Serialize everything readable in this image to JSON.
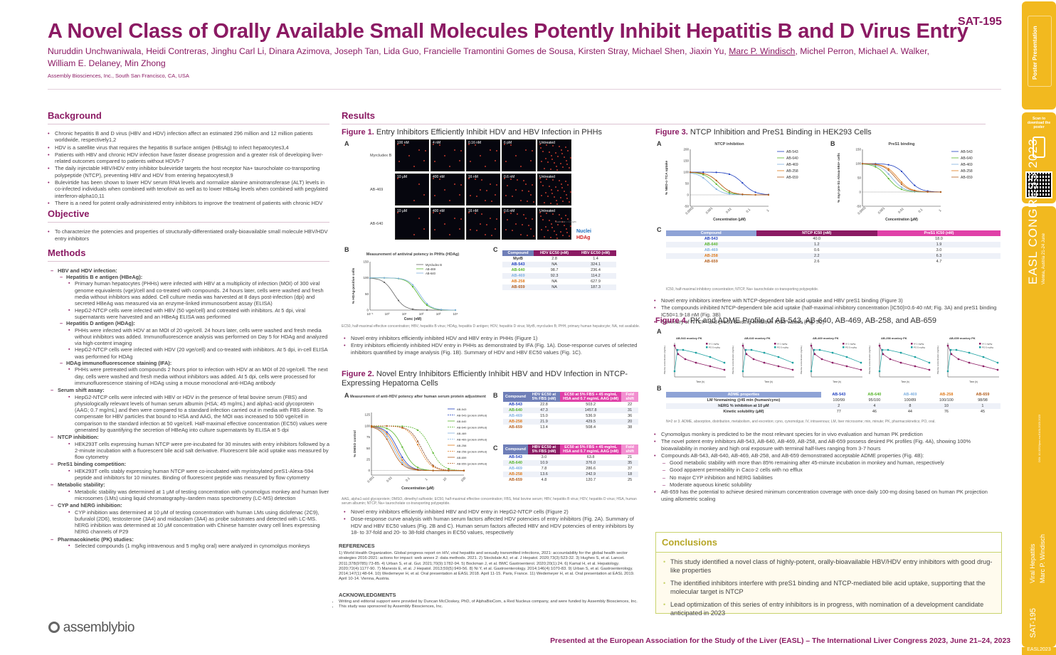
{
  "header": {
    "title": "A Novel Class of Orally Available Small Molecules Potently Inhibit Hepatitis B and D Virus Entry",
    "code": "SAT-195",
    "authors_a": "Nuruddin Unchwaniwala, Heidi Contreras, Jinghu Carl Li, Dinara Azimova, Joseph Tan, Lida Guo, Francielle Tramontini Gomes de Sousa, Kirsten Stray, Michael Shen, Jiaxin Yu, ",
    "authors_presenter": "Marc P. Windisch",
    "authors_b": ", Michel Perron, Michael A. Walker, William E. Delaney, Min Zhong",
    "affiliation": "Assembly Biosciences, Inc., South San Francisco, CA, USA"
  },
  "background": {
    "heading": "Background",
    "items": [
      "Chronic hepatitis B and D virus (HBV and HDV) infection affect an estimated 296 million and 12 million patients worldwide, respectively1,2",
      "HDV is a satellite virus that requires the hepatitis B surface antigen (HBsAg) to infect hepatocytes3,4",
      "Patients with HBV and chronic HDV infection have faster disease progression and a greater risk of developing liver-related outcomes compared to patients without HDV5-7",
      "The daily injectable HBV/HDV entry inhibitor bulevirtide targets the host receptor Na+ taurocholate co-transporting polypeptide (NTCP), preventing HBV and HDV from entering hepatocytes8,9",
      "Bulevirtide has been shown to lower HDV serum RNA levels and normalize alanine aminotransferase (ALT) levels in co-infected individuals when combined with tenofovir as well as to lower HBsAg levels when combined with pegylated interferon-alpha10,11",
      "There is a need for potent orally-administered entry inhibitors to improve the treatment of patients with chronic HDV"
    ]
  },
  "objective": {
    "heading": "Objective",
    "items": [
      "To characterize the potencies and properties of structurally-differentiated orally-bioavailable small molecule HBV/HDV entry inhibitors"
    ]
  },
  "methods": {
    "heading": "Methods",
    "lines": [
      [
        "m1",
        "HBV and HDV infection:"
      ],
      [
        "m2",
        "Hepatitis B e antigen (HBeAg):"
      ],
      [
        "m3",
        "Primary human hepatocytes (PHHs) were infected with HBV at a multiplicity of infection (MOI) of 300 viral genome equivalents (vge)/cell and co-treated with compounds. 24 hours later, cells were washed and fresh media without inhibitors was added. Cell culture media was harvested at 8 days post-infection (dpi) and secreted HBeAg was measured via an enzyme-linked immunosorbent assay (ELISA)"
      ],
      [
        "m3",
        "HepG2-NTCP cells were infected with HBV (50 vge/cell) and cotreated with inhibitors. At 5 dpi, viral supernatants were harvested and an HBeAg ELISA was performed"
      ],
      [
        "m2",
        "Hepatitis D antigen (HDAg):"
      ],
      [
        "m3",
        "PHHs were infected with HDV at an MOI of 20 vge/cell. 24 hours later, cells were washed and fresh media without inhibitors was added. Immunofluorescence analysis was performed on Day 5 for HDAg and analyzed via high-content imaging"
      ],
      [
        "m3",
        "HepG2-NTCP cells were infected with HDV (20 vge/cell) and co-treated with inhibitors. At 5 dpi, in-cell ELISA was performed for HDAg"
      ],
      [
        "m2",
        "HDAg immunofluorescence staining (IFA):"
      ],
      [
        "m3",
        "PHHs were pretreated with compounds 2 hours prior to infection with HDV at an MOI of 20 vge/cell. The next day, cells were washed and fresh media without inhibitors was added. At 5 dpi, cells were processed for immunofluorescence staining of HDAg using a mouse monoclonal anti-HDAg antibody"
      ],
      [
        "m1",
        "Serum shift assay:"
      ],
      [
        "m3",
        "HepG2-NTCP cells were infected with HBV or HDV in the presence of fetal bovine serum (FBS) and physiologically relevant levels of human serum albumin (HSA; 45 mg/mL) and alpha1-acid glycoprotein (AAG; 0.7 mg/mL) and then were compared to a standard infection carried out in media with FBS alone. To compensate for HBV particles that bound to HSA and AAG, the MOI was increased to 500 vge/cell in comparison to the standard infection at 50 vge/cell. Half-maximal effective concentration (EC50) values were generated by quantifying the secretion of HBeAg into culture supernatants by ELISA at 5 dpi"
      ],
      [
        "m1",
        "NTCP inhibition:"
      ],
      [
        "m3",
        "HEK293T cells expressing human NTCP were pre-incubated for 30 minutes with entry inhibitors followed by a 2-minute incubation with a fluorescent bile acid salt derivative. Fluorescent bile acid uptake was measured by flow cytometry"
      ],
      [
        "m1",
        "PreS1 binding competition:"
      ],
      [
        "m3",
        "HEK293T cells stably expressing human NTCP were co-incubated with myristoylated preS1-Alexa-594 peptide and inhibitors for 10 minutes. Binding of fluorescent peptide was measured by flow cytometry"
      ],
      [
        "m1",
        "Metabolic stability:"
      ],
      [
        "m3",
        "Metabolic stability was determined at 1 μM of testing concentration with cynomolgus monkey and human liver microsomes (LMs) using liquid chromatography–tandem mass spectrometry (LC-MS) detection"
      ],
      [
        "m1",
        "CYP and hERG inhibition:"
      ],
      [
        "m3",
        "CYP inhibition was determined at 10 μM of testing concentration with human LMs using diclofenac (2C9), bufuralol (2D6), testosterone (3A4) and midazolam (3A4) as probe substrates and detected with LC-MS. hERG inhibition was determined at 10 μM concentration with Chinese hamster ovary cell lines expressing hERG channels of P29"
      ],
      [
        "m1",
        "Pharmacokinetic (PK) studies:"
      ],
      [
        "m3",
        "Selected compounds (1 mg/kg intravenous and 5 mg/kg oral) were analyzed in cynomolgus monkeys"
      ]
    ]
  },
  "logo": "assemblybio",
  "results": {
    "heading": "Results",
    "fig1": {
      "num": "Figure 1.",
      "title": "Entry Inhibitors Efficiently Inhibit HDV and HBV Infection in PHHs",
      "A": "A",
      "B": "B",
      "C": "C",
      "rows": [
        "Myrcludex B",
        "AB-469",
        "AB-640"
      ],
      "row_labels": [
        [
          "100 nM",
          "4 nM",
          "0.16 nM",
          "6 pM",
          "Untreated"
        ],
        [
          "10 μM",
          "400 nM",
          "16 nM",
          "0.6 nM",
          "Untreated"
        ],
        [
          "10 μM",
          "400 nM",
          "16 nM",
          "0.6 nM",
          "Untreated"
        ]
      ],
      "scale": "Scale bar = 100μm",
      "nuclei": "Nuclei",
      "hdag": "HDAg",
      "chart_title": "Measurement of antiviral potency in PHHs (HDAg)",
      "ylabel": "% HDAg-positive cells",
      "xlabel": "Conc (nM)",
      "legend": [
        "Myrcludex B",
        "AB-469",
        "AB-640"
      ],
      "table_head": [
        "Compound",
        "HDV EC50 (nM)",
        "HBV EC50 (nM)"
      ],
      "table_rows": [
        [
          "MyrB",
          "2.8",
          "1.4"
        ],
        [
          "AB-543",
          "NA",
          "324.1"
        ],
        [
          "AB-640",
          "98.7",
          "236.4"
        ],
        [
          "AB-469",
          "92.3",
          "114.2"
        ],
        [
          "AB-258",
          "NA",
          "627.9"
        ],
        [
          "AB-659",
          "NA",
          "187.3"
        ]
      ],
      "caption": "EC50, half-maximal effective concentration; HBV, hepatitis B virus; HDAg, hepatitis D antigen; HDV, hepatitis D virus; MyrB, myrcludex B; PHH, primary human hepatocyte; NA, not available.",
      "bullets": [
        "Novel entry inhibitors efficiently inhibited HDV and HBV entry in PHHs (Figure 1)",
        "Entry inhibitors efficiently inhibited HDV entry in PHHs as demonstrated by IFA (Fig. 1A). Dose-response curves of selected inhibitors quantified by image analysis (Fig. 1B). Summary of HDV and HBV EC50 values (Fig. 1C)."
      ]
    },
    "fig2": {
      "num": "Figure 2.",
      "title": "Novel Entry Inhibitors Efficiently Inhibit HBV and HDV Infection in NTCP-Expressing Hepatoma Cells",
      "A": "A",
      "B": "B",
      "C": "C",
      "chart_title": "Measurement of anti-HDV potency after human serum protein adjustment",
      "ylabel": "% DMSO control",
      "xlabel": "Concentration (μM)",
      "legend": [
        "AB-543",
        "AB-543 (protein shifted)",
        "AB-640",
        "AB-640 (protein shifted)",
        "AB-469",
        "AB-469 (protein shifted)",
        "AB-258",
        "AB-258 (protein shifted)",
        "AB-659",
        "AB-659 (protein shifted)"
      ],
      "tableB_head": [
        "Compound",
        "HDV EC50 at 5% FBS (nM)",
        "EC50 at 5% FBS + 45 mg/mL HSA and 0.7 mg/mL AAG (nM)",
        "Fold shift"
      ],
      "tableB_rows": [
        [
          "AB-543",
          "22.8",
          "503.2",
          "22"
        ],
        [
          "AB-640",
          "47.3",
          "1457.8",
          "31"
        ],
        [
          "AB-469",
          "15.0",
          "536.9",
          "36"
        ],
        [
          "AB-258",
          "21.9",
          "429.5",
          "20"
        ],
        [
          "AB-659",
          "13.4",
          "508.4",
          "38"
        ]
      ],
      "tableC_head": [
        "Compound",
        "HBV EC50 at 5% FBS (nM)",
        "EC50 at 5% FBS + 45 mg/mL HSA and 0.7 mg/mL AAG (nM)",
        "Fold shift"
      ],
      "tableC_rows": [
        [
          "AB-543",
          "3.0",
          "63.8",
          "21"
        ],
        [
          "AB-640",
          "10.9",
          "376.0",
          "35"
        ],
        [
          "AB-469",
          "7.8",
          "286.6",
          "37"
        ],
        [
          "AB-258",
          "13.6",
          "242.9",
          "18"
        ],
        [
          "AB-659",
          "4.8",
          "120.7",
          "25"
        ]
      ],
      "caption": "AAG, alpha1-acid glycoprotein; DMSO, dimethyl sulfoxide; EC50, half-maximal effective concentration; FBS, fetal bovine serum; HBV, hepatitis B virus; HDV, hepatitis D virus; HSA, human serum albumin; NTCP, Na+ taurocholate co-transporting polypeptide.",
      "bullets": [
        "Novel entry inhibitors efficiently inhibited HBV and HDV entry in HepG2-NTCP cells (Figure 2)",
        "Dose-response curve analysis with human serum factors affected HDV potencies of entry inhibitors (Fig. 2A). Summary of HDV and HBV EC50 values (Fig. 2B and C). Human serum factors affected HBV and HDV potencies of entry inhibitors by 18- to 37-fold and 20- to 38-fold changes in EC50 values, respectively"
      ]
    },
    "refs_heading": "REFERENCES",
    "refs": "1) World Health Organization. Global progress report on HIV, viral hepatitis and sexually transmitted infections, 2021: accountability for the global health sector strategies 2016-2021: actions for impact: web annex 2: data methods. 2021. 2) Stockdale AJ, et al. J Hepatol. 2020;73(3):523-32. 3) Hughes S, et al. Lancet. 2011;378(9785):73-85. 4) Urban S, et al. Gut. 2021;70(9):1782-94. 5) Bockman J, et al. BMC Gastroenterol. 2020;20(1):24. 6) Kamal H, et al. Hepatology. 2020;72(4):1177-90. 7) Manesis E, et al. J Hepatol. 2013;59(5):949-56. 8) Ni Y, et al. Gastroenterology. 2014;146(4):1070-83. 9) Urban S, et al. Gastroenterology. 2014;147(1):48-64. 10) Wedemeyer H, et al. Oral presentation at EASL 2018. April 11-15. Paris, France. 11) Wedemeyer H, et al. Oral presentation at EASL 2019. April 10-14. Vienna, Austria.",
    "ack_heading": "ACKNOWLEDGMENTS",
    "ack": [
      "Writing and editorial support were provided by Duncan McCloskey, PhD, of AlphaBioCom, a Red Nucleus company, and were funded by Assembly Biosciences, Inc.",
      "This study was sponsored by Assembly Biosciences, Inc."
    ],
    "fig3": {
      "num": "Figure 3.",
      "title": "NTCP Inhibition and PreS1 Binding in HEK293 Cells",
      "A": "A",
      "B": "B",
      "C": "C",
      "chartA_title": "NTCP inhibition",
      "chartA_ylabel": "% NBD-c-TCA uptake",
      "chartB_title": "PreS1 binding",
      "chartB_ylabel": "% myr-pre-S1-Alexa-594+ cells",
      "xlabel": "Concentration (μM)",
      "legend": [
        "AB-543",
        "AB-640",
        "AB-469",
        "AB-258",
        "AB-659"
      ],
      "table_head": [
        "Compound",
        "NTCP IC50 (nM)",
        "PreS1 IC50 (nM)"
      ],
      "table_rows": [
        [
          "AB-543",
          "40.0",
          "18.0"
        ],
        [
          "AB-640",
          "1.2",
          "1.9"
        ],
        [
          "AB-469",
          "0.6",
          "3.0"
        ],
        [
          "AB-258",
          "2.2",
          "6.3"
        ],
        [
          "AB-659",
          "2.6",
          "4.7"
        ]
      ],
      "caption": "IC50, half-maximal inhibitory concentration; NTCP, Na+ taurocholate co-transporting polypeptide.",
      "bullets": [
        "Novel entry inhibitors interfere with NTCP-dependent bile acid uptake and HBV preS1 binding (Figure 3)",
        "The compounds inhibited NTCP-dependent bile acid uptake (half-maximal inhibitory concentration [IC50]=0.6-40 nM; Fig. 3A) and preS1 binding IC50=1.9-18 nM (Fig. 3B)",
        "Summary of NTCP- and preS1 binding inhibition IC50 values (Fig. 3C)"
      ]
    },
    "fig4": {
      "num": "Figure 4.",
      "title": "PK and ADME Profile of AB-543, AB-640, AB-469, AB-258, and AB-659",
      "A": "A",
      "B": "B",
      "pk_titles": [
        "AB-543 monkey PK",
        "AB-640 monkey PK",
        "AB-469 monkey PK",
        "AB-258 monkey PK",
        "AB-659 monkey PK"
      ],
      "pk_legend": [
        "IV 1 mg/kg",
        "PO 5 mg/kg"
      ],
      "pk_xlabel": "Time (h)",
      "pk_ylabel": "Plasma concentration (ng/mL)",
      "table_head": [
        "ADME properties",
        "AB-543",
        "AB-640",
        "AB-469",
        "AB-258",
        "AB-659"
      ],
      "table_rows": [
        [
          "LM %remaining @45 min (human/cyno)",
          "100/99",
          "95/100",
          "100/89",
          "100/100",
          "98/98"
        ],
        [
          "hERG % inhibition at 10 μM",
          "2",
          "4",
          "8",
          "10",
          "1"
        ],
        [
          "Kinetic solubility (μM)",
          "77",
          "46",
          "44",
          "76",
          "45"
        ]
      ],
      "caption": "N=2 or 3. ADME, absorption, distribution, metabolism, and excretion; cyno, cynomolgus; IV, intravenous; LM, liver microsome; min, minute; PK, pharmacokinetics; PO, oral.",
      "bullets": [
        [
          "b",
          "Cynomolgus monkey is predicted to be the most relevant species for in vivo evaluation and human PK prediction"
        ],
        [
          "b",
          "The novel potent entry inhibitors AB-543, AB-640, AB-469, AB-258, and AB-659 possess desired PK profiles (Fig. 4A), showing 100% bioavailability in monkey and high oral exposure with terminal half-lives ranging from 3-7 hours"
        ],
        [
          "b",
          "Compounds AB-543, AB-640, AB-469, AB-258, and AB-659 demonstrated acceptable ADME properties (Fig. 4B):"
        ],
        [
          "d",
          "Good metabolic stability with more than 85% remaining after 45-minute incubation in monkey and human, respectively"
        ],
        [
          "d",
          "Good apparent permeability in Caco-2 cells with no efflux"
        ],
        [
          "d",
          "No major CYP inhibition and hERG liabilities"
        ],
        [
          "d",
          "Moderate aqueous kinetic solubility"
        ],
        [
          "b",
          "AB-659 has the potential to achieve desired minimum concentration coverage with once-daily 100-mg dosing based on human PK projection using allometric scaling"
        ]
      ]
    }
  },
  "conclusions": {
    "heading": "Conclusions",
    "items": [
      "This study identified a novel class of highly-potent, orally-bioavailable HBV/HDV entry inhibitors with good drug-like properties",
      "The identified inhibitors interfere with preS1 binding and NTCP-mediated bile acid uptake, supporting that the molecular target is NTCP",
      "Lead optimization of this series of entry inhibitors is in progress, with nomination of a development candidate anticipated in 2023"
    ]
  },
  "footer": "Presented at the European Association for the Study of the Liver (EASL) – The International Liver Congress 2023, June 21–24, 2023",
  "sidebar": {
    "poster_text": "Poster Presentation",
    "scan_text": "Scan to download the poster",
    "congress": "EASL CONGRESS 2023",
    "congress_dates": "Vienna, Austria 21-24 June",
    "topic": "Viral Hepatitis",
    "presenter": "Marc P. Windisch",
    "code": "SAT-195",
    "year": "EASL2023",
    "doi": "DOI: 10.3252/pso.eu.EASL2023.2023"
  },
  "colors": {
    "brand": "#8b1a63",
    "ab543": "#1f3fbf",
    "ab640": "#57b52c",
    "ab469": "#7fb0e0",
    "ab258": "#e07a1a",
    "ab659": "#b45f1e",
    "sidebar": "#f2b91f"
  }
}
